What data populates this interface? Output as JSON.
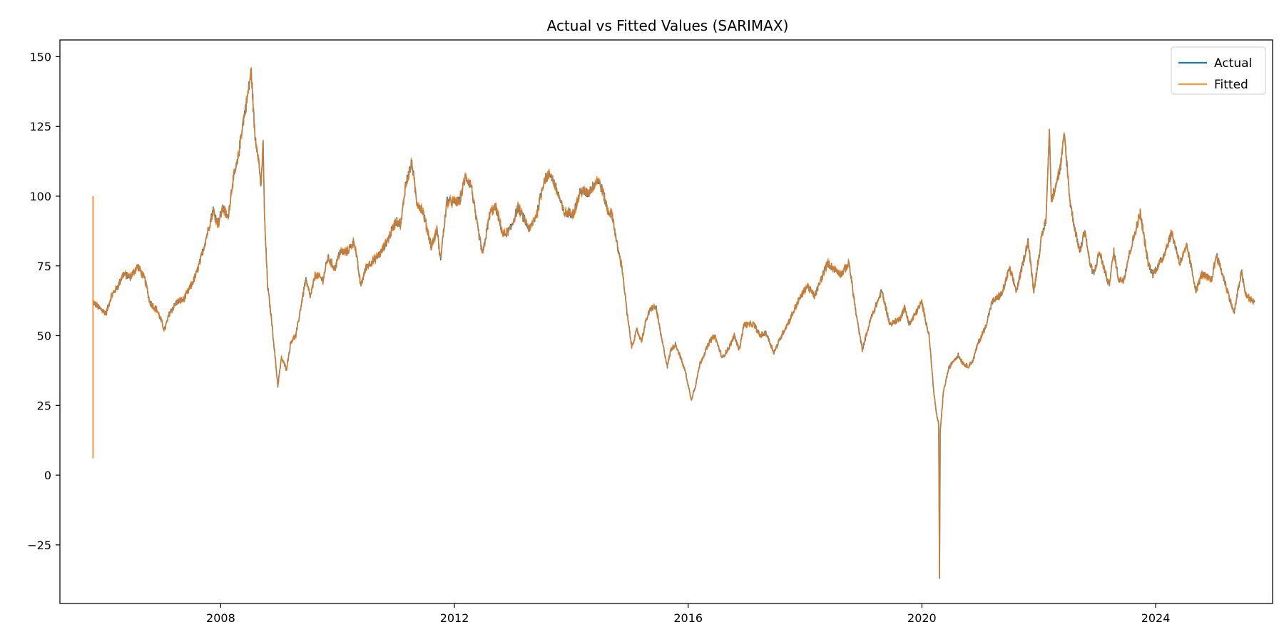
{
  "chart_data": {
    "type": "line",
    "title": "Actual vs Fitted Values (SARIMAX)",
    "xlabel": "",
    "ylabel": "",
    "x_ticks": [
      "2008",
      "2012",
      "2016",
      "2020",
      "2024"
    ],
    "y_ticks": [
      150,
      125,
      100,
      75,
      50,
      25,
      0,
      -25
    ],
    "xlim": [
      "2005-04-01",
      "2026-01-01"
    ],
    "ylim": [
      -46,
      156
    ],
    "grid": false,
    "legend_position": "top-right",
    "series": [
      {
        "name": "Actual",
        "color": "#1f77b4",
        "points": [
          [
            "2005-10-25",
            62
          ],
          [
            "2005-12-01",
            60
          ],
          [
            "2006-01-15",
            58
          ],
          [
            "2006-02-15",
            64
          ],
          [
            "2006-04-01",
            68
          ],
          [
            "2006-05-01",
            72
          ],
          [
            "2006-06-15",
            71
          ],
          [
            "2006-08-01",
            75
          ],
          [
            "2006-09-15",
            70
          ],
          [
            "2006-10-15",
            62
          ],
          [
            "2006-12-01",
            59
          ],
          [
            "2007-01-15",
            52
          ],
          [
            "2007-02-15",
            58
          ],
          [
            "2007-04-01",
            62
          ],
          [
            "2007-05-15",
            63
          ],
          [
            "2007-07-01",
            68
          ],
          [
            "2007-08-01",
            72
          ],
          [
            "2007-09-01",
            78
          ],
          [
            "2007-10-15",
            88
          ],
          [
            "2007-11-15",
            95
          ],
          [
            "2007-12-15",
            90
          ],
          [
            "2008-01-15",
            96
          ],
          [
            "2008-02-15",
            92
          ],
          [
            "2008-03-15",
            105
          ],
          [
            "2008-04-15",
            112
          ],
          [
            "2008-05-15",
            125
          ],
          [
            "2008-06-15",
            135
          ],
          [
            "2008-07-10",
            145
          ],
          [
            "2008-08-01",
            122
          ],
          [
            "2008-08-20",
            116
          ],
          [
            "2008-09-10",
            103
          ],
          [
            "2008-09-22",
            120
          ],
          [
            "2008-10-01",
            92
          ],
          [
            "2008-10-20",
            68
          ],
          [
            "2008-11-15",
            55
          ],
          [
            "2008-12-10",
            40
          ],
          [
            "2008-12-23",
            32
          ],
          [
            "2009-01-15",
            42
          ],
          [
            "2009-02-15",
            38
          ],
          [
            "2009-03-15",
            48
          ],
          [
            "2009-04-15",
            50
          ],
          [
            "2009-05-15",
            60
          ],
          [
            "2009-06-15",
            70
          ],
          [
            "2009-07-15",
            64
          ],
          [
            "2009-08-15",
            72
          ],
          [
            "2009-10-01",
            70
          ],
          [
            "2009-11-01",
            78
          ],
          [
            "2009-12-15",
            74
          ],
          [
            "2010-01-15",
            80
          ],
          [
            "2010-03-01",
            80
          ],
          [
            "2010-04-15",
            84
          ],
          [
            "2010-05-25",
            68
          ],
          [
            "2010-07-01",
            75
          ],
          [
            "2010-08-15",
            77
          ],
          [
            "2010-10-01",
            80
          ],
          [
            "2010-11-15",
            85
          ],
          [
            "2010-12-31",
            91
          ],
          [
            "2011-02-01",
            90
          ],
          [
            "2011-03-01",
            104
          ],
          [
            "2011-04-10",
            112
          ],
          [
            "2011-05-10",
            98
          ],
          [
            "2011-06-15",
            95
          ],
          [
            "2011-08-10",
            82
          ],
          [
            "2011-09-15",
            88
          ],
          [
            "2011-10-05",
            77
          ],
          [
            "2011-11-15",
            98
          ],
          [
            "2011-12-15",
            98
          ],
          [
            "2012-02-01",
            98
          ],
          [
            "2012-03-10",
            107
          ],
          [
            "2012-04-15",
            104
          ],
          [
            "2012-05-15",
            92
          ],
          [
            "2012-06-25",
            79
          ],
          [
            "2012-08-10",
            94
          ],
          [
            "2012-09-15",
            96
          ],
          [
            "2012-11-01",
            86
          ],
          [
            "2012-12-15",
            88
          ],
          [
            "2013-02-01",
            96
          ],
          [
            "2013-04-15",
            88
          ],
          [
            "2013-06-01",
            94
          ],
          [
            "2013-07-15",
            106
          ],
          [
            "2013-08-25",
            108
          ],
          [
            "2013-10-15",
            100
          ],
          [
            "2013-11-15",
            94
          ],
          [
            "2014-01-15",
            94
          ],
          [
            "2014-03-01",
            102
          ],
          [
            "2014-04-15",
            101
          ],
          [
            "2014-06-15",
            106
          ],
          [
            "2014-07-15",
            102
          ],
          [
            "2014-08-15",
            95
          ],
          [
            "2014-09-15",
            93
          ],
          [
            "2014-10-15",
            82
          ],
          [
            "2014-11-15",
            74
          ],
          [
            "2014-12-15",
            58
          ],
          [
            "2015-01-13",
            46
          ],
          [
            "2015-02-15",
            52
          ],
          [
            "2015-03-15",
            48
          ],
          [
            "2015-04-15",
            56
          ],
          [
            "2015-05-15",
            60
          ],
          [
            "2015-06-15",
            60
          ],
          [
            "2015-07-15",
            50
          ],
          [
            "2015-08-24",
            39
          ],
          [
            "2015-09-15",
            45
          ],
          [
            "2015-10-15",
            47
          ],
          [
            "2015-11-15",
            42
          ],
          [
            "2015-12-15",
            37
          ],
          [
            "2016-01-20",
            27
          ],
          [
            "2016-02-15",
            32
          ],
          [
            "2016-03-15",
            40
          ],
          [
            "2016-04-15",
            44
          ],
          [
            "2016-05-15",
            48
          ],
          [
            "2016-06-15",
            50
          ],
          [
            "2016-08-01",
            42
          ],
          [
            "2016-09-15",
            46
          ],
          [
            "2016-10-15",
            50
          ],
          [
            "2016-11-15",
            45
          ],
          [
            "2016-12-15",
            54
          ],
          [
            "2017-02-15",
            54
          ],
          [
            "2017-03-25",
            50
          ],
          [
            "2017-05-01",
            51
          ],
          [
            "2017-06-20",
            44
          ],
          [
            "2017-08-15",
            51
          ],
          [
            "2017-09-30",
            56
          ],
          [
            "2017-11-15",
            62
          ],
          [
            "2018-01-15",
            68
          ],
          [
            "2018-03-01",
            64
          ],
          [
            "2018-05-20",
            76
          ],
          [
            "2018-07-01",
            74
          ],
          [
            "2018-08-15",
            72
          ],
          [
            "2018-10-03",
            76
          ],
          [
            "2018-11-15",
            58
          ],
          [
            "2018-12-24",
            45
          ],
          [
            "2019-02-15",
            56
          ],
          [
            "2019-04-25",
            66
          ],
          [
            "2019-06-15",
            54
          ],
          [
            "2019-08-15",
            56
          ],
          [
            "2019-09-15",
            60
          ],
          [
            "2019-10-15",
            54
          ],
          [
            "2019-12-31",
            62
          ],
          [
            "2020-01-15",
            58
          ],
          [
            "2020-02-15",
            50
          ],
          [
            "2020-03-15",
            30
          ],
          [
            "2020-04-01",
            22
          ],
          [
            "2020-04-15",
            18
          ],
          [
            "2020-04-20",
            -37
          ],
          [
            "2020-04-25",
            16
          ],
          [
            "2020-05-15",
            30
          ],
          [
            "2020-06-15",
            38
          ],
          [
            "2020-07-15",
            41
          ],
          [
            "2020-08-15",
            43
          ],
          [
            "2020-09-15",
            40
          ],
          [
            "2020-10-15",
            39
          ],
          [
            "2020-11-15",
            41
          ],
          [
            "2020-12-15",
            47
          ],
          [
            "2021-02-01",
            53
          ],
          [
            "2021-03-15",
            62
          ],
          [
            "2021-05-15",
            65
          ],
          [
            "2021-07-01",
            74
          ],
          [
            "2021-08-15",
            66
          ],
          [
            "2021-10-25",
            84
          ],
          [
            "2021-12-01",
            66
          ],
          [
            "2022-01-15",
            84
          ],
          [
            "2022-02-15",
            92
          ],
          [
            "2022-03-08",
            124
          ],
          [
            "2022-03-20",
            98
          ],
          [
            "2022-04-15",
            104
          ],
          [
            "2022-05-15",
            110
          ],
          [
            "2022-06-10",
            122
          ],
          [
            "2022-07-15",
            98
          ],
          [
            "2022-08-15",
            88
          ],
          [
            "2022-09-15",
            80
          ],
          [
            "2022-10-15",
            88
          ],
          [
            "2022-11-15",
            76
          ],
          [
            "2022-12-10",
            72
          ],
          [
            "2023-01-15",
            80
          ],
          [
            "2023-03-15",
            68
          ],
          [
            "2023-04-15",
            80
          ],
          [
            "2023-05-15",
            70
          ],
          [
            "2023-06-15",
            70
          ],
          [
            "2023-07-15",
            78
          ],
          [
            "2023-09-27",
            94
          ],
          [
            "2023-11-15",
            76
          ],
          [
            "2023-12-15",
            72
          ],
          [
            "2024-02-15",
            78
          ],
          [
            "2024-04-10",
            87
          ],
          [
            "2024-06-01",
            76
          ],
          [
            "2024-07-15",
            82
          ],
          [
            "2024-09-10",
            66
          ],
          [
            "2024-10-15",
            72
          ],
          [
            "2024-12-15",
            70
          ],
          [
            "2025-01-15",
            79
          ],
          [
            "2025-03-15",
            68
          ],
          [
            "2025-05-05",
            58
          ],
          [
            "2025-06-20",
            73
          ],
          [
            "2025-07-15",
            65
          ],
          [
            "2025-08-15",
            63
          ],
          [
            "2025-09-10",
            62
          ]
        ]
      },
      {
        "name": "Fitted",
        "color": "#ff7f0e",
        "spikes": [
          [
            "2005-10-25",
            6,
            100
          ]
        ]
      }
    ]
  }
}
